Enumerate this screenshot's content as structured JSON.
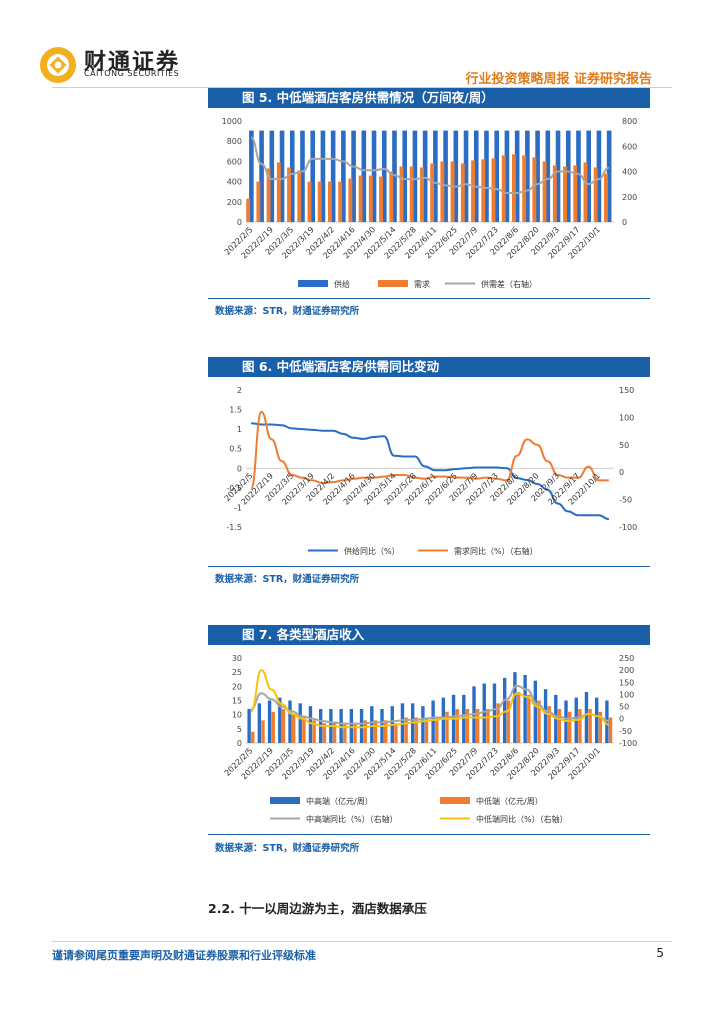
{
  "header": {
    "logo_cn": "财通证券",
    "logo_en": "CAITONG SECURITIES",
    "title": "行业投资策略周报  证券研究报告"
  },
  "colors": {
    "blue": "#2b6cc4",
    "orange": "#ee7d31",
    "gray": "#a6a6a6",
    "yellow": "#f5c20f",
    "brand": "#1a60a8"
  },
  "source_text": "数据来源：STR，财通证券研究所",
  "section_title": "2.2. 十一以周边游为主，酒店数据承压",
  "footer": {
    "disclaimer": "谨请参阅尾页重要声明及财通证券股票和行业评级标准",
    "page_number": "5"
  },
  "chart_data": [
    {
      "id": "fig5",
      "title": "图 5. 中低端酒店客房供需情况（万间夜/周）",
      "type": "bar",
      "categories": [
        "2022/2/5",
        "2022/2/12",
        "2022/2/19",
        "2022/2/26",
        "2022/3/5",
        "2022/3/12",
        "2022/3/19",
        "2022/3/26",
        "2022/4/2",
        "2022/4/9",
        "2022/4/16",
        "2022/4/23",
        "2022/4/30",
        "2022/5/7",
        "2022/5/14",
        "2022/5/21",
        "2022/5/28",
        "2022/6/4",
        "2022/6/11",
        "2022/6/18",
        "2022/6/25",
        "2022/7/2",
        "2022/7/9",
        "2022/7/16",
        "2022/7/23",
        "2022/7/30",
        "2022/8/6",
        "2022/8/13",
        "2022/8/20",
        "2022/8/27",
        "2022/9/3",
        "2022/9/10",
        "2022/9/17",
        "2022/9/24",
        "2022/10/1",
        "2022/10/8"
      ],
      "tick_labels": [
        "2022/2/5",
        "2022/2/19",
        "2022/3/5",
        "2022/3/19",
        "2022/4/2",
        "2022/4/16",
        "2022/4/30",
        "2022/5/14",
        "2022/5/28",
        "2022/6/11",
        "2022/6/25",
        "2022/7/9",
        "2022/7/23",
        "2022/8/6",
        "2022/8/20",
        "2022/9/3",
        "2022/9/17",
        "2022/10/1"
      ],
      "y_left": {
        "min": 0,
        "max": 1000,
        "ticks": [
          0,
          200,
          400,
          600,
          800,
          1000
        ]
      },
      "y_right": {
        "min": 0,
        "max": 800,
        "ticks": [
          0,
          200,
          400,
          600,
          800
        ]
      },
      "series": [
        {
          "name": "供给",
          "kind": "bar",
          "axis": "left",
          "color": "#2b6cc4",
          "values": [
            905,
            905,
            905,
            905,
            905,
            905,
            905,
            905,
            905,
            905,
            905,
            905,
            905,
            905,
            905,
            905,
            905,
            905,
            905,
            905,
            905,
            905,
            905,
            905,
            905,
            905,
            905,
            905,
            905,
            905,
            905,
            905,
            905,
            905,
            905,
            905
          ]
        },
        {
          "name": "需求",
          "kind": "bar",
          "axis": "left",
          "color": "#ee7d31",
          "values": [
            230,
            400,
            530,
            590,
            540,
            510,
            400,
            400,
            400,
            400,
            430,
            460,
            460,
            450,
            500,
            550,
            550,
            540,
            580,
            600,
            600,
            580,
            610,
            620,
            630,
            660,
            670,
            660,
            640,
            600,
            560,
            550,
            560,
            590,
            540,
            480
          ]
        },
        {
          "name": "供需差（右轴）",
          "kind": "line",
          "axis": "right",
          "color": "#a6a6a6",
          "values": [
            670,
            460,
            340,
            340,
            380,
            400,
            500,
            500,
            500,
            480,
            440,
            410,
            410,
            420,
            370,
            340,
            340,
            350,
            310,
            290,
            280,
            300,
            280,
            270,
            260,
            230,
            230,
            250,
            300,
            340,
            400,
            400,
            380,
            300,
            340,
            430
          ]
        }
      ]
    },
    {
      "id": "fig6",
      "title": "图 6. 中低端酒店客房供需同比变动",
      "type": "line",
      "categories": [
        "2022/2/5",
        "2022/2/12",
        "2022/2/19",
        "2022/2/26",
        "2022/3/5",
        "2022/3/12",
        "2022/3/19",
        "2022/3/26",
        "2022/4/2",
        "2022/4/9",
        "2022/4/16",
        "2022/4/23",
        "2022/4/30",
        "2022/5/7",
        "2022/5/14",
        "2022/5/21",
        "2022/5/28",
        "2022/6/4",
        "2022/6/11",
        "2022/6/18",
        "2022/6/25",
        "2022/7/2",
        "2022/7/9",
        "2022/7/16",
        "2022/7/23",
        "2022/7/30",
        "2022/8/6",
        "2022/8/13",
        "2022/8/20",
        "2022/8/27",
        "2022/9/3",
        "2022/9/10",
        "2022/9/17",
        "2022/9/24",
        "2022/10/1",
        "2022/10/8"
      ],
      "tick_labels": [
        "2022/2/5",
        "2022/2/19",
        "2022/3/5",
        "2022/3/19",
        "2022/4/2",
        "2022/4/16",
        "2022/4/30",
        "2022/5/14",
        "2022/5/28",
        "2022/6/11",
        "2022/6/25",
        "2022/7/9",
        "2022/7/23",
        "2022/8/6",
        "2022/8/20",
        "2022/9/3",
        "2022/9/17",
        "2022/10/1"
      ],
      "y_left": {
        "min": -1.5,
        "max": 2,
        "ticks": [
          -1.5,
          -1,
          -0.5,
          0,
          0.5,
          1,
          1.5,
          2
        ]
      },
      "y_right": {
        "min": -100,
        "max": 150,
        "ticks": [
          -100,
          -50,
          0,
          50,
          100,
          150
        ]
      },
      "series": [
        {
          "name": "供给同比（%）",
          "axis": "left",
          "color": "#2b6cc4",
          "values": [
            1.15,
            1.12,
            1.12,
            1.1,
            1.02,
            1.0,
            0.98,
            0.96,
            0.96,
            0.88,
            0.78,
            0.75,
            0.8,
            0.82,
            0.32,
            0.3,
            0.3,
            0.05,
            -0.05,
            -0.05,
            -0.02,
            0.0,
            0.02,
            0.02,
            0.02,
            0.0,
            -0.25,
            -0.3,
            -0.4,
            -0.55,
            -0.9,
            -1.1,
            -1.2,
            -1.2,
            -1.2,
            -1.3
          ]
        },
        {
          "name": "需求同比（%）（右轴）",
          "axis": "right",
          "color": "#ee7d31",
          "values": [
            -30,
            110,
            60,
            20,
            -5,
            -10,
            -15,
            -20,
            -18,
            -15,
            -12,
            -10,
            -10,
            -8,
            -5,
            -5,
            -10,
            -12,
            -8,
            -8,
            -10,
            -10,
            -12,
            -10,
            -12,
            -15,
            30,
            60,
            50,
            20,
            -5,
            -10,
            -10,
            10,
            -15,
            -15
          ]
        }
      ]
    },
    {
      "id": "fig7",
      "title": "图 7. 各类型酒店收入",
      "type": "bar",
      "categories": [
        "2022/2/5",
        "2022/2/12",
        "2022/2/19",
        "2022/2/26",
        "2022/3/5",
        "2022/3/12",
        "2022/3/19",
        "2022/3/26",
        "2022/4/2",
        "2022/4/9",
        "2022/4/16",
        "2022/4/23",
        "2022/4/30",
        "2022/5/7",
        "2022/5/14",
        "2022/5/21",
        "2022/5/28",
        "2022/6/4",
        "2022/6/11",
        "2022/6/18",
        "2022/6/25",
        "2022/7/2",
        "2022/7/9",
        "2022/7/16",
        "2022/7/23",
        "2022/7/30",
        "2022/8/6",
        "2022/8/13",
        "2022/8/20",
        "2022/8/27",
        "2022/9/3",
        "2022/9/10",
        "2022/9/17",
        "2022/9/24",
        "2022/10/1",
        "2022/10/8"
      ],
      "tick_labels": [
        "2022/2/5",
        "2022/2/19",
        "2022/3/5",
        "2022/3/19",
        "2022/4/2",
        "2022/4/16",
        "2022/4/30",
        "2022/5/14",
        "2022/5/28",
        "2022/6/11",
        "2022/6/25",
        "2022/7/9",
        "2022/7/23",
        "2022/8/6",
        "2022/8/20",
        "2022/9/3",
        "2022/9/17",
        "2022/10/1"
      ],
      "y_left": {
        "min": 0,
        "max": 30,
        "ticks": [
          0,
          5,
          10,
          15,
          20,
          25,
          30
        ]
      },
      "y_right": {
        "min": -100,
        "max": 250,
        "ticks": [
          -100,
          -50,
          0,
          50,
          100,
          150,
          200,
          250
        ]
      },
      "series": [
        {
          "name": "中高端（亿元/周）",
          "kind": "bar",
          "axis": "left",
          "color": "#2b6cc4",
          "values": [
            12,
            14,
            15,
            16,
            15,
            14,
            13,
            12,
            12,
            12,
            12,
            12,
            13,
            12,
            13,
            14,
            14,
            13,
            15,
            16,
            17,
            17,
            20,
            21,
            21,
            23,
            25,
            24,
            22,
            19,
            17,
            15,
            16,
            18,
            16,
            15
          ]
        },
        {
          "name": "中低端（亿元/周）",
          "kind": "bar",
          "axis": "left",
          "color": "#ee7d31",
          "values": [
            4,
            8,
            11,
            12,
            10,
            9,
            8,
            7,
            7,
            7,
            7,
            8,
            8,
            8,
            7,
            9,
            9,
            9,
            9,
            11,
            12,
            12,
            12,
            12,
            14,
            15,
            18,
            17,
            15,
            13,
            12,
            11,
            12,
            12,
            11,
            9
          ]
        },
        {
          "name": "中高端同比（%）（右轴）",
          "kind": "line",
          "axis": "right",
          "color": "#a6a6a6",
          "values": [
            40,
            105,
            80,
            50,
            30,
            10,
            0,
            -10,
            -15,
            -20,
            -20,
            -20,
            -15,
            -15,
            -10,
            -5,
            -5,
            0,
            5,
            5,
            10,
            15,
            20,
            30,
            40,
            80,
            135,
            120,
            60,
            30,
            10,
            0,
            5,
            20,
            10,
            -10
          ]
        },
        {
          "name": "中低端同比（%）（右轴）",
          "kind": "line",
          "axis": "right",
          "color": "#f5c20f",
          "values": [
            30,
            200,
            120,
            60,
            20,
            0,
            -20,
            -30,
            -30,
            -35,
            -35,
            -35,
            -30,
            -30,
            -25,
            -20,
            -15,
            -10,
            -5,
            0,
            0,
            5,
            5,
            5,
            10,
            30,
            105,
            90,
            50,
            20,
            0,
            -10,
            -5,
            20,
            10,
            -25
          ]
        }
      ]
    }
  ]
}
